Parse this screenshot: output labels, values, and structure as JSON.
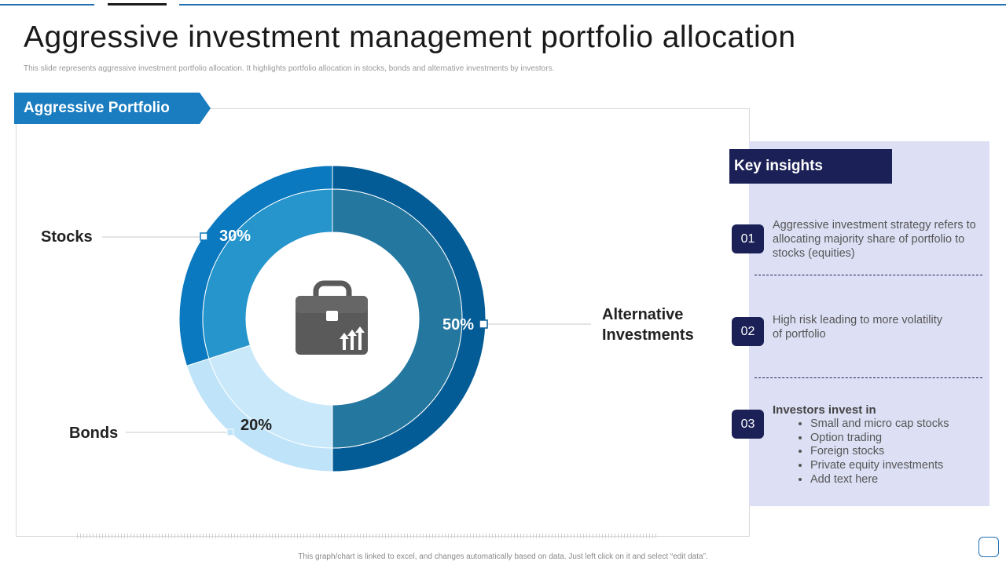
{
  "header": {
    "title": "Aggressive investment management portfolio allocation",
    "subtitle": "This slide represents aggressive investment portfolio allocation. It highlights portfolio allocation in stocks, bonds and alternative investments by investors."
  },
  "chart_data": {
    "type": "pie",
    "variant": "donut",
    "title": "Aggressive Portfolio",
    "categories": [
      "Alternative Investments",
      "Bonds",
      "Stocks"
    ],
    "values": [
      50,
      20,
      30
    ],
    "labels": [
      "50%",
      "20%",
      "30%"
    ],
    "colors": [
      "#24779f",
      "#c9e9fb",
      "#2595cc"
    ],
    "outer_colors": [
      "#045c96",
      "#bfe3f8",
      "#0a79bf"
    ],
    "center_icon": "briefcase-growth-icon",
    "legend": "none"
  },
  "label_lines": {
    "stocks": "Stocks",
    "bonds": "Bonds",
    "alt_line1": "Alternative",
    "alt_line2": "Investments"
  },
  "insights": {
    "heading": "Key insights",
    "items": [
      {
        "num": "01",
        "text": "Aggressive investment strategy refers to allocating majority share of portfolio to stocks (equities)"
      },
      {
        "num": "02",
        "text": "High risk leading to more volatility of portfolio"
      },
      {
        "num": "03",
        "title": "Investors invest in",
        "bullets": [
          "Small and micro cap stocks",
          "Option trading",
          "Foreign stocks",
          "Private equity investments",
          "Add text here"
        ]
      }
    ]
  },
  "footer": {
    "note": "This graph/chart is linked to excel, and changes automatically based on data. Just left click on it and select “edit data”."
  }
}
